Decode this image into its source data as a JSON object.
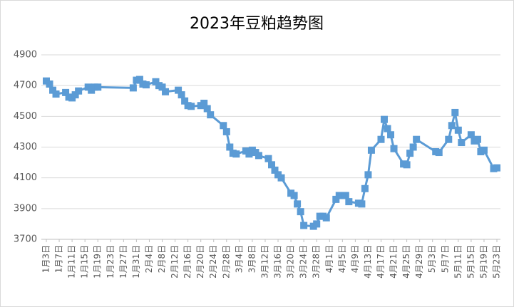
{
  "chart_data": {
    "type": "line",
    "title": "2023年豆粕趋势图",
    "x": [
      "1月3日",
      "1月4日",
      "1月5日",
      "1月6日",
      "1月9日",
      "1月10日",
      "1月11日",
      "1月12日",
      "1月13日",
      "1月16日",
      "1月17日",
      "1月18日",
      "1月19日",
      "1月30日",
      "1月31日",
      "2月1日",
      "2月2日",
      "2月3日",
      "2月6日",
      "2月7日",
      "2月8日",
      "2月9日",
      "2月13日",
      "2月14日",
      "2月15日",
      "2月16日",
      "2月17日",
      "2月20日",
      "2月21日",
      "2月22日",
      "2月23日",
      "2月27日",
      "2月28日",
      "3月1日",
      "3月2日",
      "3月3日",
      "3月6日",
      "3月7日",
      "3月8日",
      "3月9日",
      "3月10日",
      "3月13日",
      "3月14日",
      "3月15日",
      "3月16日",
      "3月17日",
      "3月20日",
      "3月21日",
      "3月22日",
      "3月23日",
      "3月24日",
      "3月27日",
      "3月28日",
      "3月29日",
      "3月30日",
      "3月31日",
      "4月3日",
      "4月4日",
      "4月6日",
      "4月7日",
      "4月10日",
      "4月11日",
      "4月12日",
      "4月13日",
      "4月14日",
      "4月17日",
      "4月18日",
      "4月19日",
      "4月20日",
      "4月21日",
      "4月24日",
      "4月25日",
      "4月26日",
      "4月27日",
      "4月28日",
      "5月4日",
      "5月5日",
      "5月8日",
      "5月9日",
      "5月10日",
      "5月11日",
      "5月12日",
      "5月15日",
      "5月16日",
      "5月17日",
      "5月18日",
      "5月19日",
      "5月22日",
      "5月23日"
    ],
    "series": [
      {
        "name": "豆粕",
        "color": "#5b9bd5",
        "values": [
          4730,
          4710,
          4670,
          4645,
          4655,
          4625,
          4620,
          4640,
          4665,
          4690,
          4670,
          4690,
          4690,
          4685,
          4735,
          4740,
          4710,
          4705,
          4725,
          4700,
          4690,
          4660,
          4670,
          4640,
          4600,
          4570,
          4565,
          4570,
          4585,
          4550,
          4510,
          4440,
          4400,
          4300,
          4260,
          4255,
          4275,
          4255,
          4280,
          4265,
          4245,
          4225,
          4185,
          4150,
          4120,
          4100,
          4000,
          3985,
          3930,
          3880,
          3790,
          3785,
          3800,
          3850,
          3850,
          3840,
          3960,
          3985,
          3985,
          3945,
          3935,
          3930,
          4030,
          4120,
          4280,
          4350,
          4480,
          4420,
          4380,
          4290,
          4190,
          4185,
          4260,
          4300,
          4350,
          4270,
          4265,
          4350,
          4440,
          4525,
          4410,
          4330,
          4380,
          4340,
          4350,
          4270,
          4280,
          4160,
          4165
        ]
      }
    ],
    "xlim": [
      "1月3日",
      "5月23日"
    ],
    "xticks": [
      "1月3日",
      "1月7日",
      "1月11日",
      "1月15日",
      "1月19日",
      "1月23日",
      "1月27日",
      "1月31日",
      "2月4日",
      "2月8日",
      "2月12日",
      "2月16日",
      "2月20日",
      "2月24日",
      "2月28日",
      "3月4日",
      "3月8日",
      "3月12日",
      "3月16日",
      "3月20日",
      "3月24日",
      "3月28日",
      "4月1日",
      "4月5日",
      "4月9日",
      "4月13日",
      "4月17日",
      "4月21日",
      "4月25日",
      "4月29日",
      "5月3日",
      "5月7日",
      "5月11日",
      "5月15日",
      "5月19日",
      "5月23日"
    ],
    "ylim": [
      3700,
      4900
    ],
    "yticks": [
      3700,
      3900,
      4100,
      4300,
      4500,
      4700,
      4900
    ],
    "grid": true
  }
}
